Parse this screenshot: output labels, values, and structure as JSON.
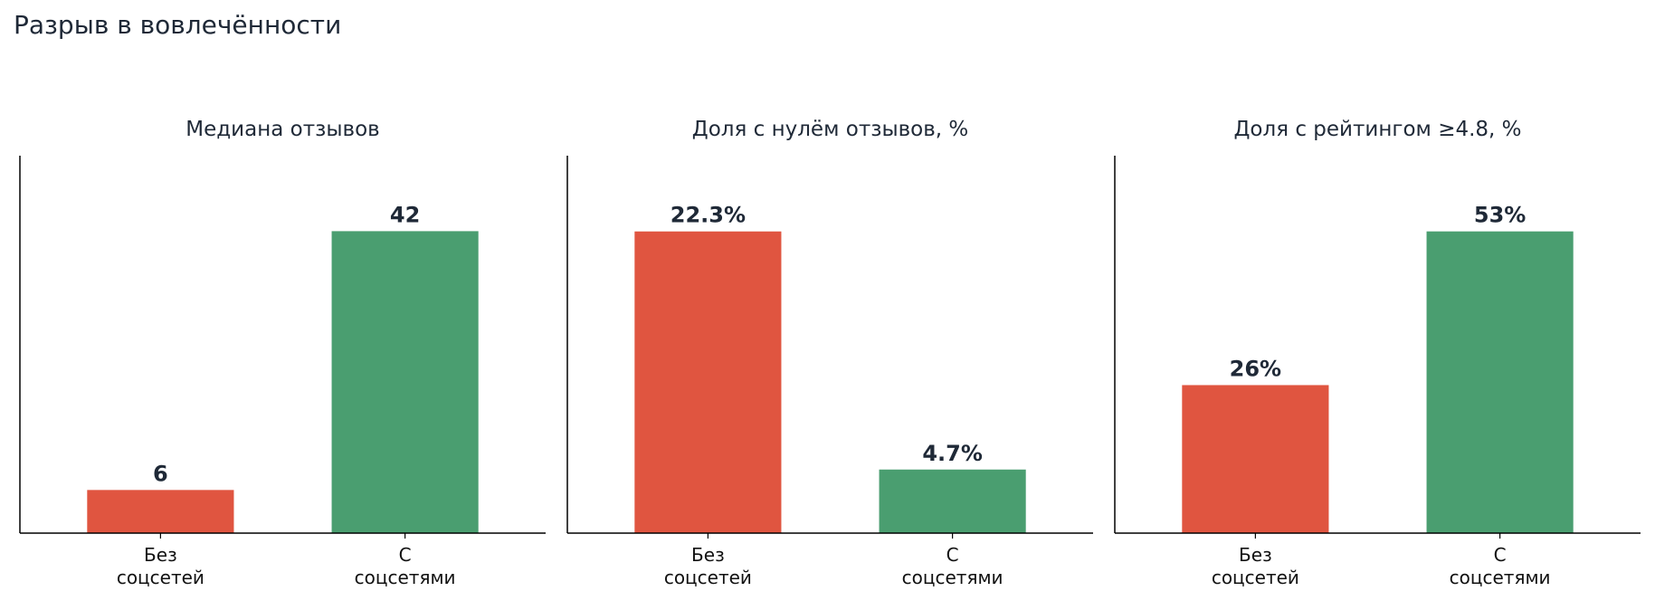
{
  "title": "Разрыв в вовлечённости",
  "colors": {
    "without": "#e05540",
    "with": "#4a9e70",
    "text": "#1f2937",
    "axis": "#000000"
  },
  "chart_data": [
    {
      "type": "bar",
      "title": "Медиана отзывов",
      "categories": [
        "Без\nсоцсетей",
        "С\nсоцсетями"
      ],
      "values": [
        6,
        42
      ],
      "value_labels": [
        "6",
        "42"
      ],
      "ylim": [
        0,
        52.5
      ],
      "grid": false,
      "spines": "left-bottom",
      "y_ticks_visible": false
    },
    {
      "type": "bar",
      "title": "Доля с нулём отзывов, %",
      "categories": [
        "Без\nсоцсетей",
        "С\nсоцсетями"
      ],
      "values": [
        22.3,
        4.7
      ],
      "value_labels": [
        "22.3%",
        "4.7%"
      ],
      "ylim": [
        0,
        27.9
      ],
      "grid": false,
      "spines": "left-bottom",
      "y_ticks_visible": false
    },
    {
      "type": "bar",
      "title": "Доля с рейтингом ≥4.8, %",
      "categories": [
        "Без\nсоцсетей",
        "С\nсоцсетями"
      ],
      "values": [
        26,
        53
      ],
      "value_labels": [
        "26%",
        "53%"
      ],
      "ylim": [
        0,
        66.3
      ],
      "grid": false,
      "spines": "left-bottom",
      "y_ticks_visible": false
    }
  ]
}
